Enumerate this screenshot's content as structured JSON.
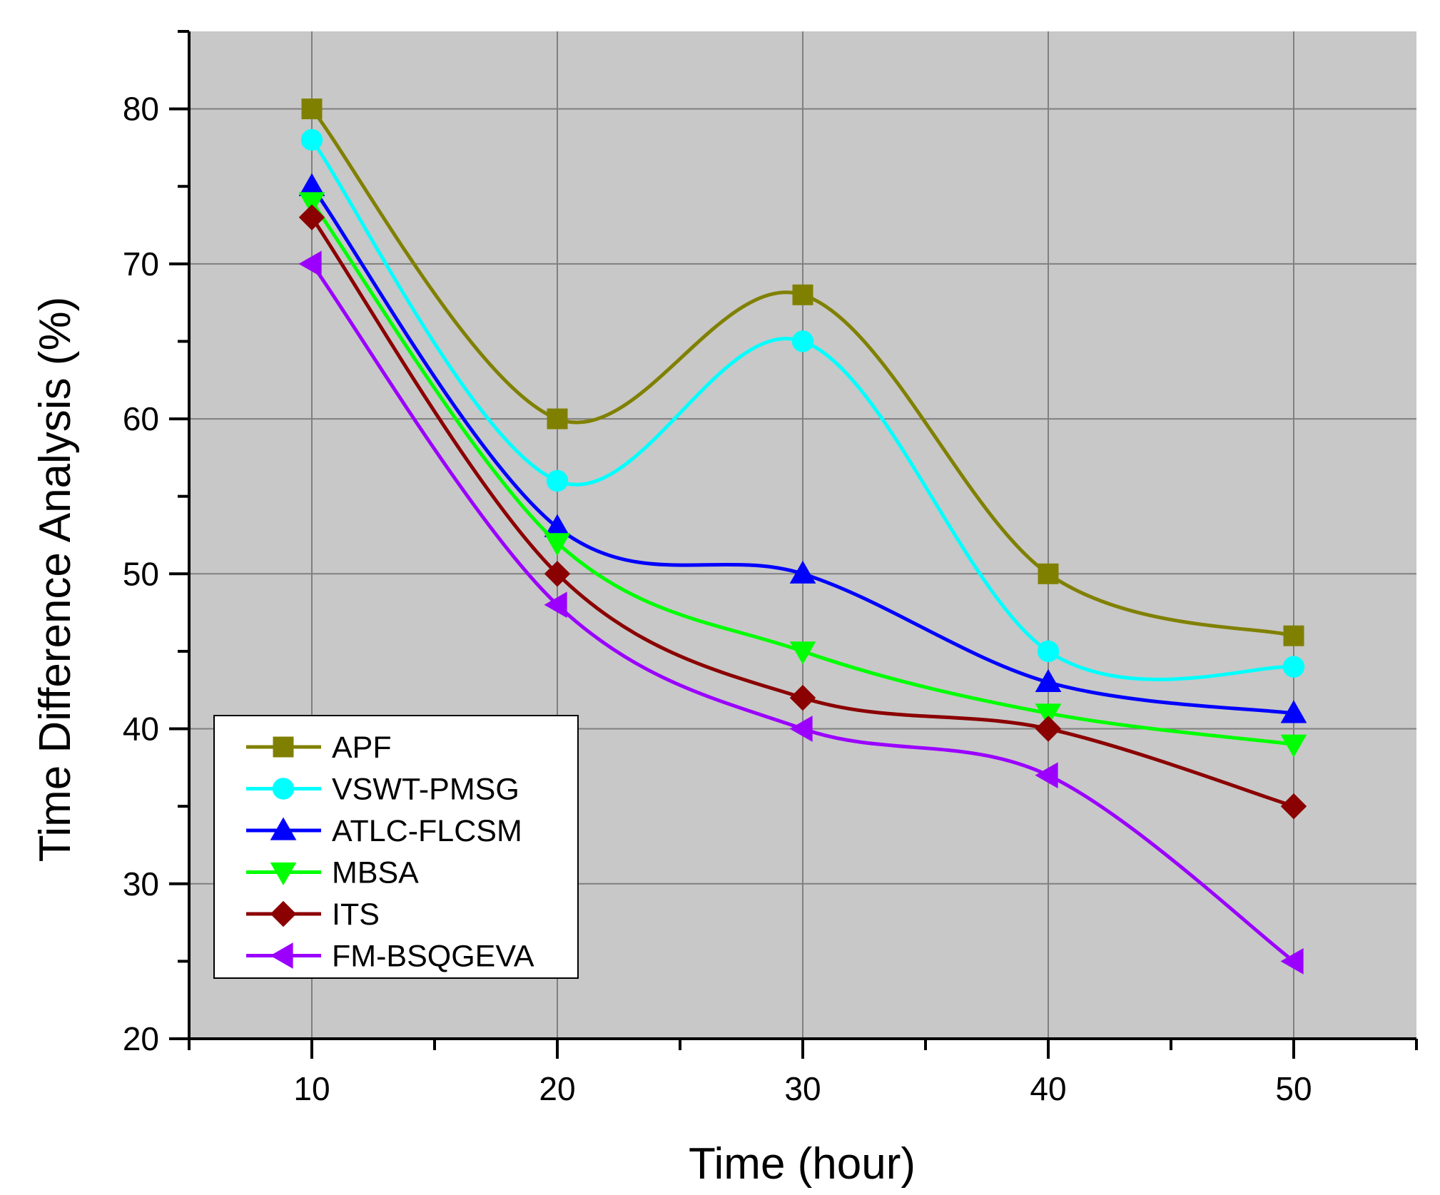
{
  "chart_data": {
    "type": "line",
    "title": "",
    "xlabel": "Time (hour)",
    "ylabel": "Time Difference Analysis (%)",
    "x": [
      10,
      20,
      30,
      40,
      50
    ],
    "xlim": [
      5,
      55
    ],
    "ylim": [
      20,
      85
    ],
    "xticks": [
      "10",
      "20",
      "30",
      "40",
      "50"
    ],
    "yticks": [
      "20",
      "30",
      "40",
      "50",
      "60",
      "70",
      "80"
    ],
    "grid": true,
    "background_color": "#c8c8c8",
    "legend_position": "bottom-left",
    "series": [
      {
        "name": "APF",
        "values": [
          80,
          60,
          68,
          50,
          46
        ],
        "color": "#808000",
        "marker": "square"
      },
      {
        "name": "VSWT-PMSG",
        "values": [
          78,
          56,
          65,
          45,
          44
        ],
        "color": "#00ffff",
        "marker": "circle"
      },
      {
        "name": "ATLC-FLCSM",
        "values": [
          75,
          53,
          50,
          43,
          41
        ],
        "color": "#0000ff",
        "marker": "triangle-up"
      },
      {
        "name": "MBSA",
        "values": [
          74,
          52,
          45,
          41,
          39
        ],
        "color": "#00ff00",
        "marker": "triangle-down"
      },
      {
        "name": "ITS",
        "values": [
          73,
          50,
          42,
          40,
          35
        ],
        "color": "#8b0000",
        "marker": "diamond"
      },
      {
        "name": "FM-BSQGEVA",
        "values": [
          70,
          48,
          40,
          37,
          25
        ],
        "color": "#9b00ff",
        "marker": "triangle-left"
      }
    ]
  }
}
